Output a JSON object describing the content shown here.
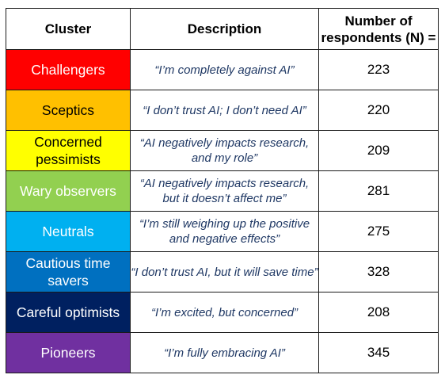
{
  "headers": {
    "cluster": "Cluster",
    "description": "Description",
    "respondents": "Number of respondents (N) ="
  },
  "rows": [
    {
      "cluster": "Challengers",
      "description": "“I’m completely against AI”",
      "n": "223",
      "color": "#ff0000",
      "text_color": "#ffffff"
    },
    {
      "cluster": "Sceptics",
      "description": "“I don’t trust AI; I don’t need AI”",
      "n": "220",
      "color": "#ffc000",
      "text_color": "#000000"
    },
    {
      "cluster": "Concerned pessimists",
      "description": "“AI negatively impacts research, and my role”",
      "n": "209",
      "color": "#ffff00",
      "text_color": "#000000"
    },
    {
      "cluster": "Wary observers",
      "description": "“AI negatively impacts research, but it doesn’t affect me”",
      "n": "281",
      "color": "#92d050",
      "text_color": "#ffffff"
    },
    {
      "cluster": "Neutrals",
      "description": "“I’m still weighing up the positive and negative effects”",
      "n": "275",
      "color": "#00b0f0",
      "text_color": "#ffffff"
    },
    {
      "cluster": "Cautious time savers",
      "description": "“I don’t trust AI, but it will save time”",
      "n": "328",
      "color": "#0070c0",
      "text_color": "#ffffff"
    },
    {
      "cluster": "Careful optimists",
      "description": "“I’m excited, but concerned”",
      "n": "208",
      "color": "#002060",
      "text_color": "#ffffff"
    },
    {
      "cluster": "Pioneers",
      "description": "“I’m fully embracing AI”",
      "n": "345",
      "color": "#7030a0",
      "text_color": "#ffffff"
    }
  ]
}
